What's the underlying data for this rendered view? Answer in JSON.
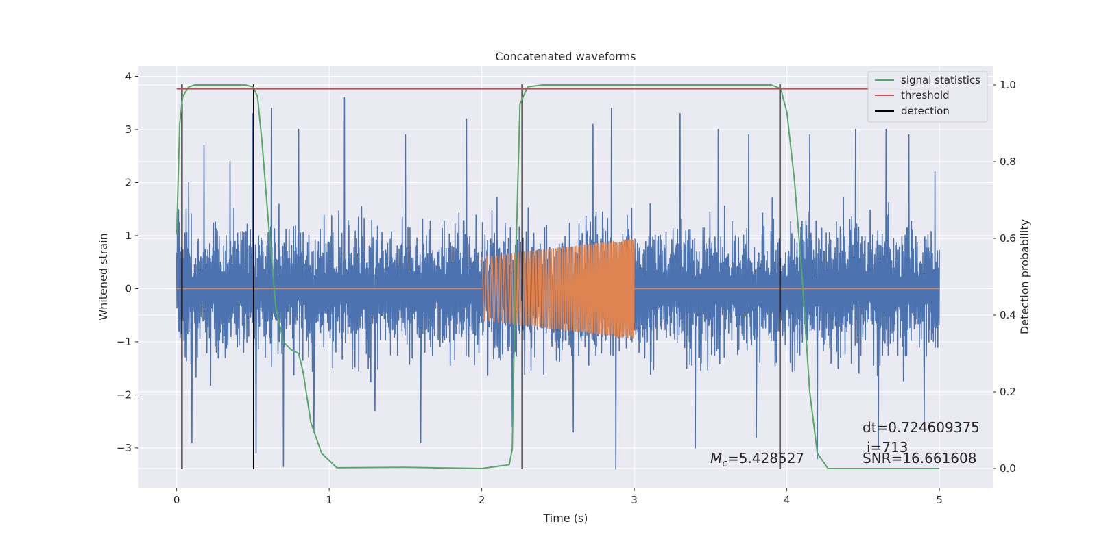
{
  "chart_data": {
    "type": "line",
    "title": "Concatenated waveforms",
    "xlabel": "Time (s)",
    "ylabel": "Whitened strain",
    "ylabel_right": "Detection probability",
    "xlim": [
      -0.25,
      5.35
    ],
    "ylim": [
      -3.75,
      4.2
    ],
    "ylim_right": [
      -0.05,
      1.05
    ],
    "xticks": [
      0,
      1,
      2,
      3,
      4,
      5
    ],
    "yticks": [
      -3,
      -2,
      -1,
      0,
      1,
      2,
      3,
      4
    ],
    "yticks_right": [
      0.0,
      0.2,
      0.4,
      0.6,
      0.8,
      1.0
    ],
    "grid": true,
    "legend_position": "top-right",
    "colors": {
      "strain": "#4c72b0",
      "template": "#dd8452",
      "statistics": "#55a868",
      "threshold": "#c44e52",
      "detection": "#000000",
      "plot_bg": "#eaeaf2"
    },
    "series": [
      {
        "name": "",
        "axis": "left",
        "description_values": "whitened strain noise, 0–5 s, amplitude roughly -3.4 to 3.6",
        "x_range": [
          0,
          5
        ],
        "peak_values": [
          [
            0.08,
            2.0
          ],
          [
            0.18,
            2.7
          ],
          [
            0.35,
            2.4
          ],
          [
            0.5,
            3.3
          ],
          [
            0.62,
            3.4
          ],
          [
            0.8,
            3.0
          ],
          [
            1.1,
            3.6
          ],
          [
            1.5,
            2.9
          ],
          [
            1.9,
            3.2
          ],
          [
            2.2,
            3.5
          ],
          [
            2.73,
            3.1
          ],
          [
            2.85,
            3.4
          ],
          [
            3.3,
            3.3
          ],
          [
            3.55,
            3.0
          ],
          [
            3.75,
            2.9
          ],
          [
            4.15,
            2.9
          ],
          [
            4.45,
            3.0
          ],
          [
            4.65,
            3.0
          ],
          [
            4.8,
            2.9
          ],
          [
            4.97,
            2.2
          ]
        ],
        "trough_values": [
          [
            0.1,
            -2.9
          ],
          [
            0.52,
            -3.1
          ],
          [
            0.7,
            -3.35
          ],
          [
            0.9,
            -2.7
          ],
          [
            1.3,
            -2.3
          ],
          [
            1.6,
            -2.9
          ],
          [
            2.2,
            -2.6
          ],
          [
            2.6,
            -2.7
          ],
          [
            2.88,
            -3.4
          ],
          [
            3.4,
            -3.0
          ],
          [
            3.8,
            -2.8
          ],
          [
            4.2,
            -3.2
          ],
          [
            4.6,
            -3.0
          ],
          [
            4.9,
            -2.6
          ]
        ]
      },
      {
        "name": "",
        "axis": "left",
        "description_values": "chirp template, zero outside 2–3 s, amplitude grows from 0.6 to 0.95",
        "points": [
          [
            0,
            0
          ],
          [
            2.0,
            0
          ],
          [
            2.0,
            0.6
          ],
          [
            2.5,
            0.78
          ],
          [
            3.0,
            0.95
          ],
          [
            3.0,
            0
          ],
          [
            5.0,
            0
          ]
        ]
      },
      {
        "name": "signal statistics",
        "axis": "right",
        "points": [
          [
            0.0,
            0.61
          ],
          [
            0.02,
            0.9
          ],
          [
            0.04,
            0.97
          ],
          [
            0.08,
            0.995
          ],
          [
            0.12,
            1.0
          ],
          [
            0.45,
            1.0
          ],
          [
            0.5,
            0.995
          ],
          [
            0.53,
            0.97
          ],
          [
            0.56,
            0.85
          ],
          [
            0.6,
            0.65
          ],
          [
            0.65,
            0.42
          ],
          [
            0.7,
            0.33
          ],
          [
            0.75,
            0.31
          ],
          [
            0.8,
            0.3
          ],
          [
            0.83,
            0.25
          ],
          [
            0.88,
            0.12
          ],
          [
            0.95,
            0.04
          ],
          [
            1.05,
            0.002
          ],
          [
            1.5,
            0.003
          ],
          [
            2.0,
            0.0
          ],
          [
            2.18,
            0.01
          ],
          [
            2.2,
            0.05
          ],
          [
            2.22,
            0.5
          ],
          [
            2.25,
            0.95
          ],
          [
            2.3,
            0.995
          ],
          [
            2.4,
            1.0
          ],
          [
            3.9,
            1.0
          ],
          [
            3.96,
            0.99
          ],
          [
            4.0,
            0.93
          ],
          [
            4.05,
            0.75
          ],
          [
            4.1,
            0.5
          ],
          [
            4.15,
            0.2
          ],
          [
            4.2,
            0.04
          ],
          [
            4.27,
            0.0
          ],
          [
            5.0,
            0.0
          ]
        ]
      },
      {
        "name": "threshold",
        "axis": "right",
        "points": [
          [
            0.0,
            0.99
          ],
          [
            5.0,
            0.99
          ]
        ]
      },
      {
        "name": "detection",
        "axis": "left",
        "vertical_lines_x": [
          0.035,
          0.505,
          2.265,
          3.955
        ],
        "y_range": [
          -3.4,
          3.85
        ]
      }
    ],
    "annotations": [
      {
        "key": "dt",
        "text": "dt=0.724609375"
      },
      {
        "key": "i",
        "text": "i=713"
      },
      {
        "key": "mc_symbol",
        "text": "M"
      },
      {
        "key": "mc_sub",
        "text": "c"
      },
      {
        "key": "mc_value",
        "text": "=5.428527"
      },
      {
        "key": "snr",
        "text": "SNR=16.661608"
      }
    ]
  }
}
